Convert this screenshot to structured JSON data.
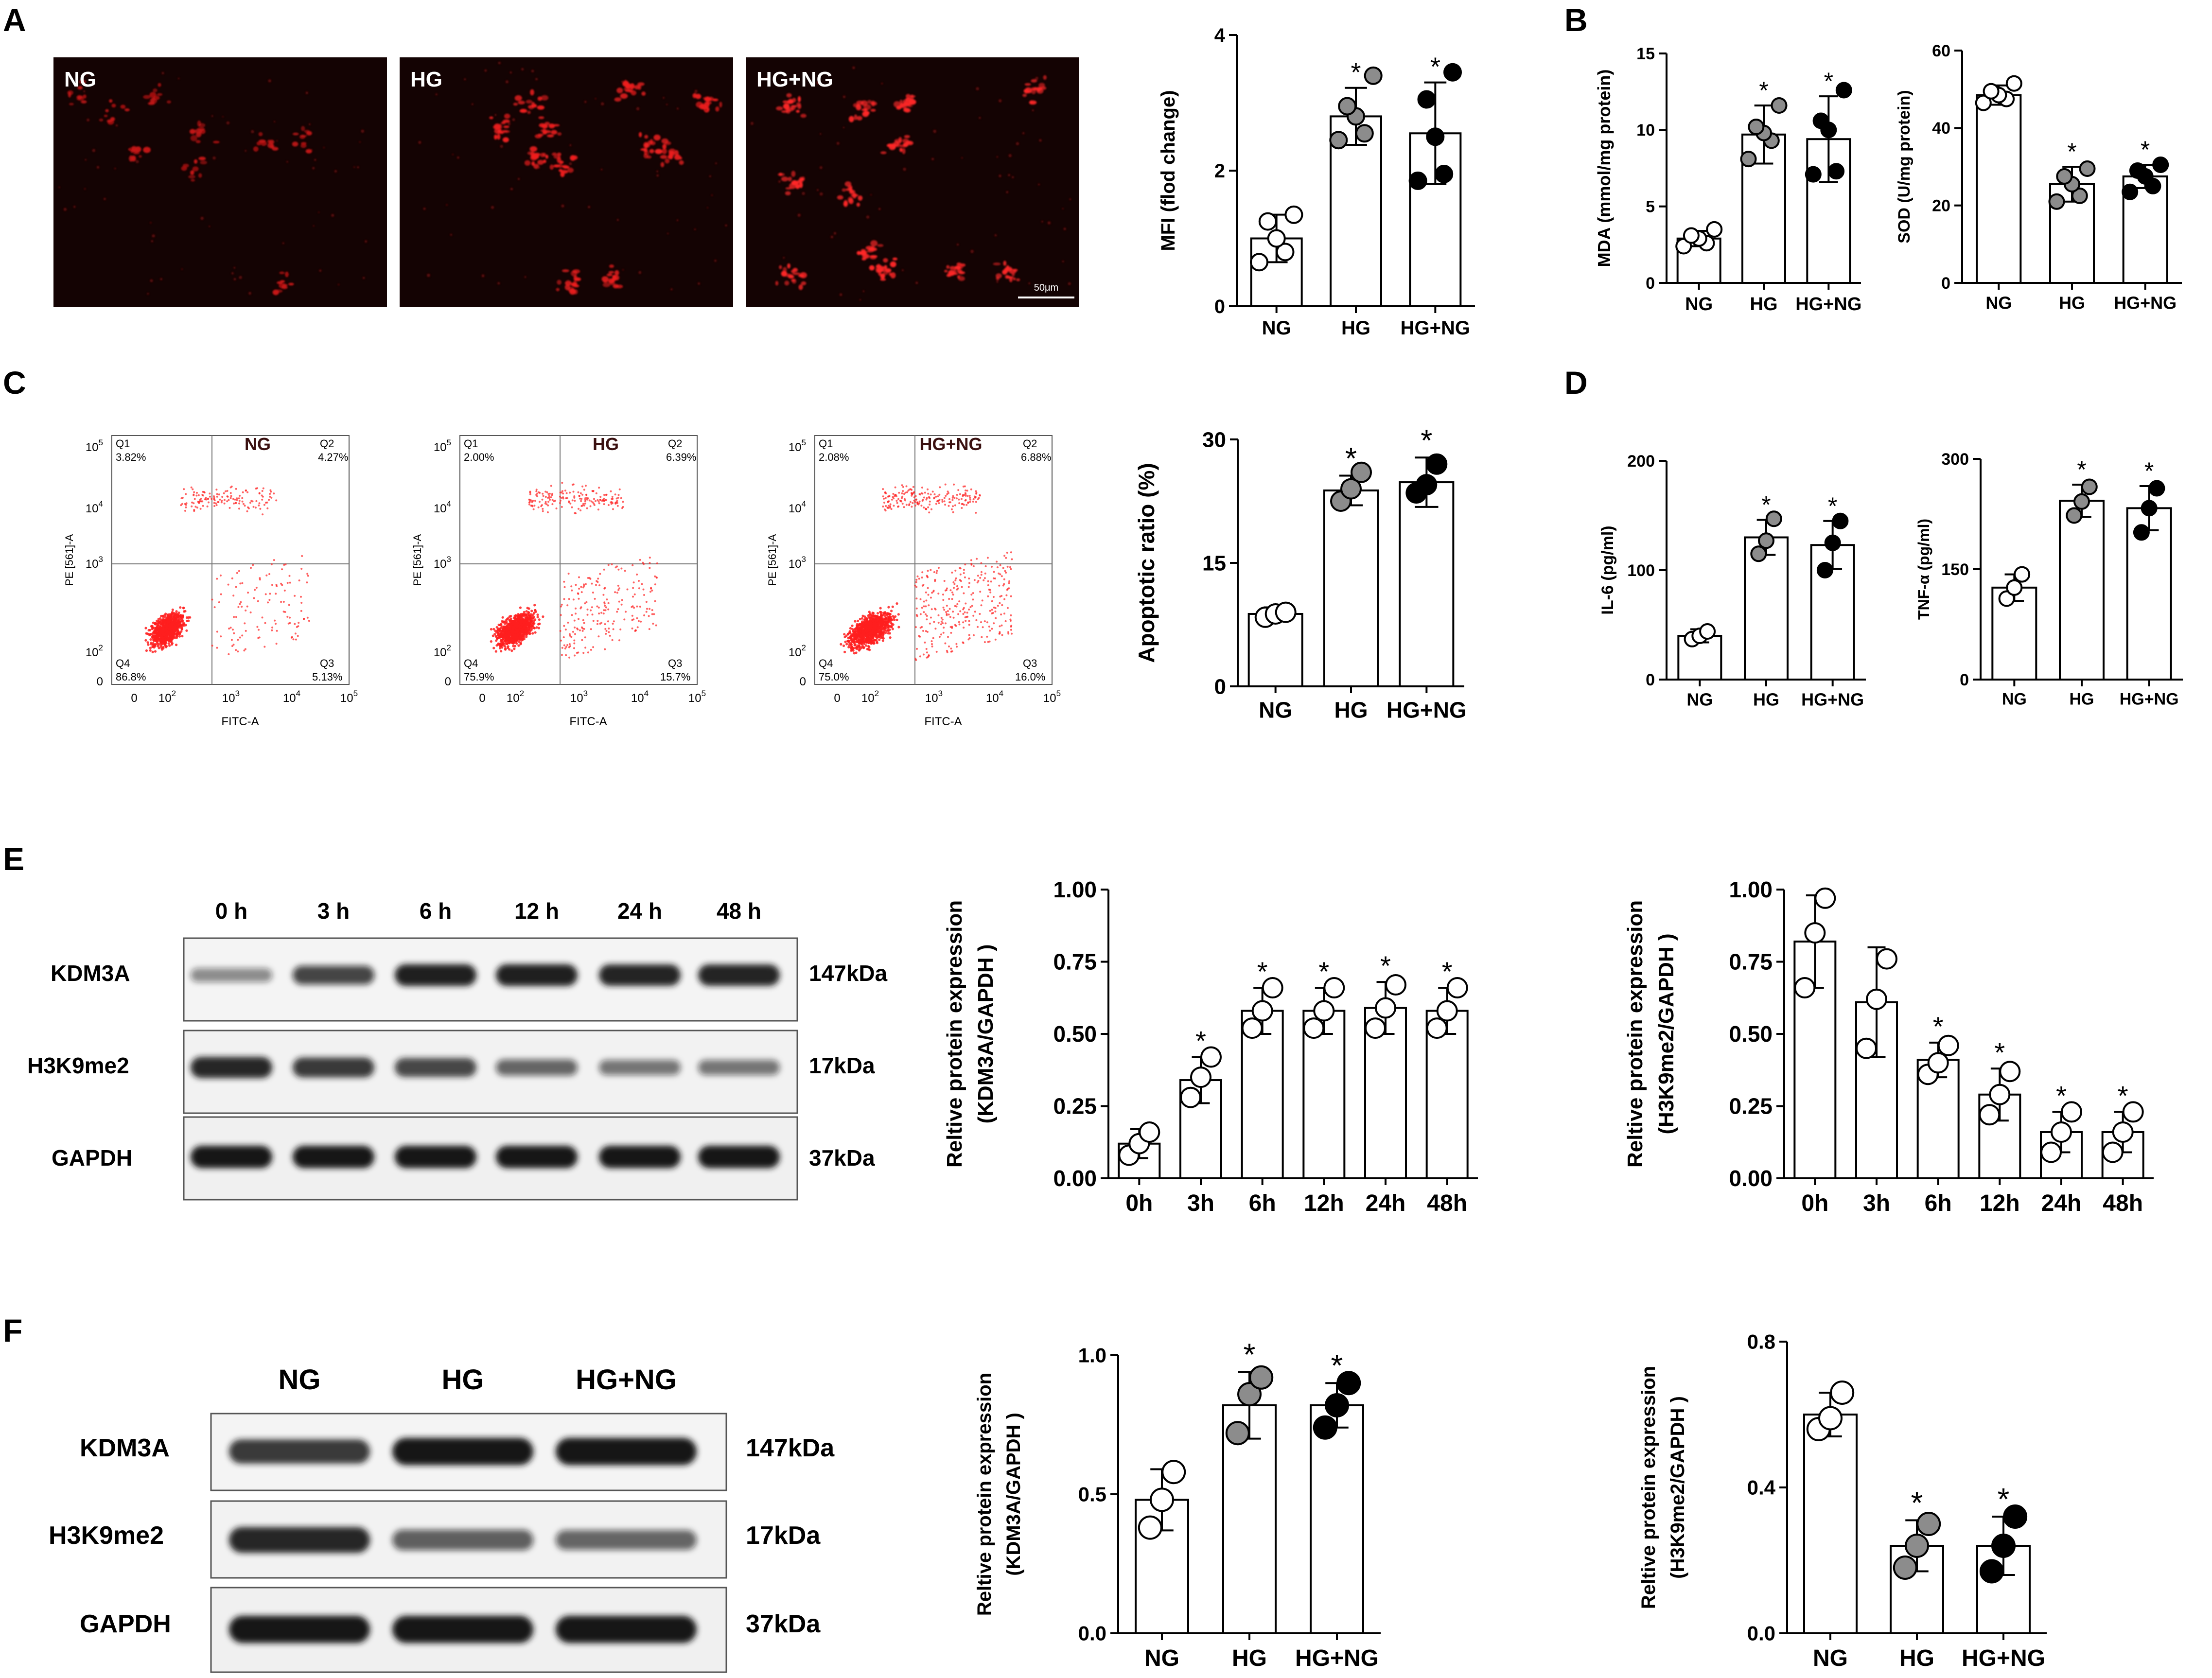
{
  "panel_letters": [
    "A",
    "B",
    "C",
    "D",
    "E",
    "F"
  ],
  "panel_a": {
    "micrographs": [
      {
        "label": "NG"
      },
      {
        "label": "HG"
      },
      {
        "label": "HG+NG",
        "scale_bar": "50μm"
      }
    ]
  },
  "panel_c": {
    "flow_plots": [
      {
        "title": "NG",
        "q1": "3.82%",
        "q2": "4.27%",
        "q3": "5.13%",
        "q4": "86.8%"
      },
      {
        "title": "HG",
        "q1": "2.00%",
        "q2": "6.39%",
        "q3": "15.7%",
        "q4": "75.9%"
      },
      {
        "title": "HG+NG",
        "q1": "2.08%",
        "q2": "6.88%",
        "q3": "16.0%",
        "q4": "75.0%"
      }
    ],
    "quadrant_names": [
      "Q1",
      "Q2",
      "Q3",
      "Q4"
    ],
    "x_axis_label": "FITC-A",
    "y_axis_label": "PE [561]-A",
    "x_ticks": [
      "0",
      "10",
      "10",
      "10",
      "10"
    ],
    "x_tick_exponents": [
      "",
      "2",
      "3",
      "4",
      "5"
    ],
    "y_ticks": [
      "0",
      "10",
      "10",
      "10",
      "10"
    ],
    "y_tick_exponents": [
      "",
      "2",
      "3",
      "4",
      "5"
    ]
  },
  "blots": {
    "e": {
      "lanes": [
        "0 h",
        "3 h",
        "6 h",
        "12 h",
        "24 h",
        "48 h"
      ],
      "rows": [
        {
          "protein": "KDM3A",
          "size": "147kDa"
        },
        {
          "protein": "H3K9me2",
          "size": "17kDa"
        },
        {
          "protein": "GAPDH",
          "size": "37kDa"
        }
      ],
      "band_intensity": [
        [
          0.3,
          0.7,
          0.95,
          0.95,
          0.92,
          0.92
        ],
        [
          0.9,
          0.8,
          0.72,
          0.5,
          0.42,
          0.42
        ],
        [
          1.0,
          1.0,
          1.0,
          1.0,
          1.0,
          1.0
        ]
      ]
    },
    "f": {
      "lanes": [
        "NG",
        "HG",
        "HG+NG"
      ],
      "rows": [
        {
          "protein": "KDM3A",
          "size": "147kDa"
        },
        {
          "protein": "H3K9me2",
          "size": "17kDa"
        },
        {
          "protein": "GAPDH",
          "size": "37kDa"
        }
      ],
      "band_intensity": [
        [
          0.8,
          1.0,
          1.0
        ],
        [
          0.9,
          0.55,
          0.5
        ],
        [
          1.0,
          1.0,
          1.0
        ]
      ]
    }
  },
  "colors": {
    "open": "#ffffff",
    "grey": "#8c8c8c",
    "black": "#000000",
    "red": "#ff1f1f"
  },
  "chart_data": [
    {
      "id": "a_mfi",
      "type": "bar",
      "categories": [
        "NG",
        "HG",
        "HG+NG"
      ],
      "values": [
        1.0,
        2.8,
        2.55
      ],
      "errors": [
        0.35,
        0.42,
        0.75
      ],
      "points": [
        [
          0.65,
          0.8,
          1.0,
          1.25,
          1.35
        ],
        [
          2.45,
          2.55,
          2.8,
          2.95,
          3.4
        ],
        [
          1.85,
          1.95,
          2.5,
          3.05,
          3.45
        ]
      ],
      "fills": [
        "open",
        "grey",
        "black"
      ],
      "stars": [
        "",
        "*",
        "*"
      ],
      "ylabel": "MFI (flod change)",
      "ylim": [
        0,
        4
      ],
      "yticks": [
        0,
        2,
        4
      ],
      "ytick_labels": [
        "0",
        "2",
        "4"
      ]
    },
    {
      "id": "b_mda",
      "type": "bar",
      "categories": [
        "NG",
        "HG",
        "HG+NG"
      ],
      "values": [
        2.9,
        9.7,
        9.4
      ],
      "errors": [
        0.5,
        1.9,
        2.8
      ],
      "points": [
        [
          2.4,
          2.6,
          2.9,
          3.1,
          3.5
        ],
        [
          8.1,
          9.3,
          9.8,
          10.2,
          11.6
        ],
        [
          7.1,
          7.3,
          10.0,
          10.6,
          12.6
        ]
      ],
      "fills": [
        "open",
        "grey",
        "black"
      ],
      "stars": [
        "",
        "*",
        "*"
      ],
      "ylabel": "MDA (mmol/mg protein)",
      "ylim": [
        0,
        15
      ],
      "yticks": [
        0,
        5,
        10,
        15
      ],
      "ytick_labels": [
        "0",
        "5",
        "10",
        "15"
      ]
    },
    {
      "id": "b_sod",
      "type": "bar",
      "categories": [
        "NG",
        "HG",
        "HG+NG"
      ],
      "values": [
        48.5,
        25.5,
        27.5
      ],
      "errors": [
        2.5,
        4.5,
        3.0
      ],
      "points": [
        [
          46.5,
          47.5,
          48.5,
          49.5,
          51.5
        ],
        [
          21.0,
          22.5,
          25.5,
          27.5,
          29.5
        ],
        [
          23.5,
          25.0,
          27.5,
          29.0,
          30.5
        ]
      ],
      "fills": [
        "open",
        "grey",
        "black"
      ],
      "stars": [
        "",
        "*",
        "*"
      ],
      "ylabel": "SOD (U/mg protein)",
      "ylim": [
        0,
        60
      ],
      "yticks": [
        0,
        20,
        40,
        60
      ],
      "ytick_labels": [
        "0",
        "20",
        "40",
        "60"
      ]
    },
    {
      "id": "c_apoptosis",
      "type": "bar",
      "categories": [
        "NG",
        "HG",
        "HG+NG"
      ],
      "values": [
        8.8,
        23.8,
        24.8
      ],
      "errors": [
        0.8,
        1.8,
        3.0
      ],
      "points": [
        [
          8.4,
          8.8,
          9.0
        ],
        [
          22.5,
          24.0,
          26.0
        ],
        [
          23.5,
          24.5,
          27.0
        ]
      ],
      "fills": [
        "open",
        "grey",
        "black"
      ],
      "stars": [
        "",
        "*",
        "*"
      ],
      "ylabel": "Apoptotic ratio (%)",
      "ylim": [
        0,
        30
      ],
      "yticks": [
        0,
        15,
        30
      ],
      "ytick_labels": [
        "0",
        "15",
        "30"
      ]
    },
    {
      "id": "d_il6",
      "type": "bar",
      "categories": [
        "NG",
        "HG",
        "HG+NG"
      ],
      "values": [
        40,
        130,
        123
      ],
      "errors": [
        6,
        16,
        22
      ],
      "points": [
        [
          37,
          40,
          44
        ],
        [
          115,
          127,
          147
        ],
        [
          100,
          125,
          145
        ]
      ],
      "fills": [
        "open",
        "grey",
        "black"
      ],
      "stars": [
        "",
        "*",
        "*"
      ],
      "ylabel": "IL-6 (pg/ml)",
      "ylim": [
        0,
        200
      ],
      "yticks": [
        0,
        100,
        200
      ],
      "ytick_labels": [
        "0",
        "100",
        "200"
      ]
    },
    {
      "id": "d_tnf",
      "type": "bar",
      "categories": [
        "NG",
        "HG",
        "HG+NG"
      ],
      "values": [
        125,
        243,
        233
      ],
      "errors": [
        18,
        22,
        30
      ],
      "points": [
        [
          110,
          125,
          143
        ],
        [
          223,
          242,
          262
        ],
        [
          200,
          233,
          260
        ]
      ],
      "fills": [
        "open",
        "grey",
        "black"
      ],
      "stars": [
        "",
        "*",
        "*"
      ],
      "ylabel": "TNF-α (pg/ml)",
      "ylim": [
        0,
        300
      ],
      "yticks": [
        0,
        150,
        300
      ],
      "ytick_labels": [
        "0",
        "150",
        "300"
      ]
    },
    {
      "id": "e_kdm3a",
      "type": "bar",
      "categories": [
        "0h",
        "3h",
        "6h",
        "12h",
        "24h",
        "48h"
      ],
      "values": [
        0.12,
        0.34,
        0.58,
        0.58,
        0.59,
        0.58
      ],
      "errors": [
        0.05,
        0.08,
        0.08,
        0.08,
        0.09,
        0.08
      ],
      "points": [
        [
          0.08,
          0.12,
          0.16
        ],
        [
          0.28,
          0.35,
          0.42
        ],
        [
          0.52,
          0.58,
          0.66
        ],
        [
          0.52,
          0.58,
          0.66
        ],
        [
          0.52,
          0.59,
          0.67
        ],
        [
          0.52,
          0.58,
          0.66
        ]
      ],
      "fills": [
        "open",
        "open",
        "open",
        "open",
        "open",
        "open"
      ],
      "stars": [
        "",
        "*",
        "*",
        "*",
        "*",
        "*"
      ],
      "ylabel": "Reltive  protein expression",
      "ylabel2": "(KDM3A/GAPDH )",
      "ylim": [
        0,
        1.0
      ],
      "yticks": [
        0,
        0.25,
        0.5,
        0.75,
        1.0
      ],
      "ytick_labels": [
        "0.00",
        "0.25",
        "0.50",
        "0.75",
        "1.00"
      ]
    },
    {
      "id": "e_h3k9",
      "type": "bar",
      "categories": [
        "0h",
        "3h",
        "6h",
        "12h",
        "24h",
        "48h"
      ],
      "values": [
        0.82,
        0.61,
        0.41,
        0.29,
        0.16,
        0.16
      ],
      "errors": [
        0.16,
        0.19,
        0.06,
        0.09,
        0.07,
        0.07
      ],
      "points": [
        [
          0.66,
          0.85,
          0.97
        ],
        [
          0.45,
          0.62,
          0.76
        ],
        [
          0.36,
          0.4,
          0.46
        ],
        [
          0.22,
          0.29,
          0.37
        ],
        [
          0.09,
          0.16,
          0.23
        ],
        [
          0.09,
          0.16,
          0.23
        ]
      ],
      "fills": [
        "open",
        "open",
        "open",
        "open",
        "open",
        "open"
      ],
      "stars": [
        "",
        "",
        "*",
        "*",
        "*",
        "*"
      ],
      "ylabel": "Reltive  protein expression",
      "ylabel2": "(H3K9me2/GAPDH )",
      "ylim": [
        0,
        1.0
      ],
      "yticks": [
        0,
        0.25,
        0.5,
        0.75,
        1.0
      ],
      "ytick_labels": [
        "0.00",
        "0.25",
        "0.50",
        "0.75",
        "1.00"
      ]
    },
    {
      "id": "f_kdm3a",
      "type": "bar",
      "categories": [
        "NG",
        "HG",
        "HG+NG"
      ],
      "values": [
        0.48,
        0.82,
        0.82
      ],
      "errors": [
        0.11,
        0.12,
        0.08
      ],
      "points": [
        [
          0.38,
          0.48,
          0.58
        ],
        [
          0.72,
          0.86,
          0.92
        ],
        [
          0.74,
          0.82,
          0.9
        ]
      ],
      "fills": [
        "open",
        "grey",
        "black"
      ],
      "stars": [
        "",
        "*",
        "*"
      ],
      "ylabel": "Reltive  protein expression",
      "ylabel2": "(KDM3A/GAPDH )",
      "ylim": [
        0,
        1.0
      ],
      "yticks": [
        0,
        0.5,
        1.0
      ],
      "ytick_labels": [
        "0.0",
        "0.5",
        "1.0"
      ]
    },
    {
      "id": "f_h3k9",
      "type": "bar",
      "categories": [
        "NG",
        "HG",
        "HG+NG"
      ],
      "values": [
        0.6,
        0.24,
        0.24
      ],
      "errors": [
        0.06,
        0.07,
        0.08
      ],
      "points": [
        [
          0.56,
          0.59,
          0.66
        ],
        [
          0.18,
          0.24,
          0.3
        ],
        [
          0.17,
          0.24,
          0.32
        ]
      ],
      "fills": [
        "open",
        "grey",
        "black"
      ],
      "stars": [
        "",
        "*",
        "*"
      ],
      "ylabel": "Reltive  protein expression",
      "ylabel2": "(H3K9me2/GAPDH )",
      "ylim": [
        0,
        0.8
      ],
      "yticks": [
        0,
        0.4,
        0.8
      ],
      "ytick_labels": [
        "0.0",
        "0.4",
        "0.8"
      ]
    }
  ]
}
